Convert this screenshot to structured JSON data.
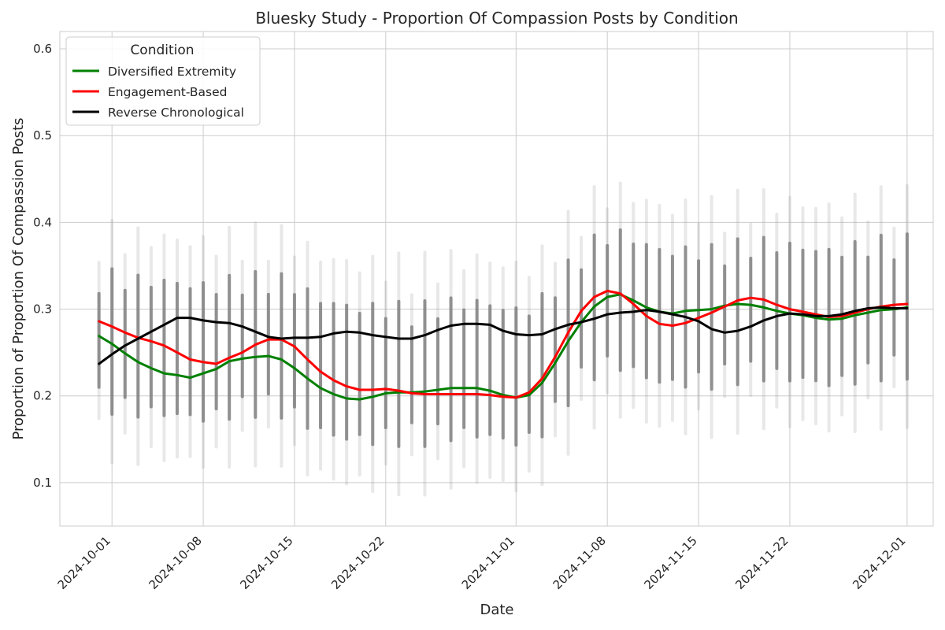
{
  "chart_data": {
    "type": "line",
    "title": "Bluesky Study - Proportion Of Compassion Posts by Condition",
    "xlabel": "Date",
    "ylabel": "Proportion of Proportion Of Compassion Posts",
    "xlim": [
      "2024-09-27",
      "2024-12-03"
    ],
    "ylim": [
      0.05,
      0.62
    ],
    "xticks": [
      "2024-10-01",
      "2024-10-08",
      "2024-10-15",
      "2024-10-22",
      "2024-11-01",
      "2024-11-08",
      "2024-11-15",
      "2024-11-22",
      "2024-12-01"
    ],
    "yticks": [
      0.1,
      0.2,
      0.3,
      0.4,
      0.5,
      0.6
    ],
    "grid": true,
    "legend": {
      "title": "Condition",
      "position": "top-left"
    },
    "scatter_color": "#808080",
    "series": [
      {
        "name": "Diversified Extremity",
        "color": "#008000",
        "points": [
          [
            "2024-09-30",
            0.269
          ],
          [
            "2024-10-01",
            0.26
          ],
          [
            "2024-10-02",
            0.249
          ],
          [
            "2024-10-03",
            0.239
          ],
          [
            "2024-10-04",
            0.232
          ],
          [
            "2024-10-05",
            0.226
          ],
          [
            "2024-10-06",
            0.224
          ],
          [
            "2024-10-07",
            0.221
          ],
          [
            "2024-10-08",
            0.226
          ],
          [
            "2024-10-09",
            0.231
          ],
          [
            "2024-10-10",
            0.24
          ],
          [
            "2024-10-11",
            0.243
          ],
          [
            "2024-10-12",
            0.245
          ],
          [
            "2024-10-13",
            0.246
          ],
          [
            "2024-10-14",
            0.242
          ],
          [
            "2024-10-15",
            0.232
          ],
          [
            "2024-10-16",
            0.22
          ],
          [
            "2024-10-17",
            0.209
          ],
          [
            "2024-10-18",
            0.202
          ],
          [
            "2024-10-19",
            0.197
          ],
          [
            "2024-10-20",
            0.196
          ],
          [
            "2024-10-21",
            0.199
          ],
          [
            "2024-10-22",
            0.203
          ],
          [
            "2024-10-23",
            0.204
          ],
          [
            "2024-10-24",
            0.204
          ],
          [
            "2024-10-25",
            0.205
          ],
          [
            "2024-10-26",
            0.207
          ],
          [
            "2024-10-27",
            0.209
          ],
          [
            "2024-10-28",
            0.209
          ],
          [
            "2024-10-29",
            0.209
          ],
          [
            "2024-10-30",
            0.206
          ],
          [
            "2024-10-31",
            0.201
          ],
          [
            "2024-11-01",
            0.198
          ],
          [
            "2024-11-02",
            0.201
          ],
          [
            "2024-11-03",
            0.215
          ],
          [
            "2024-11-04",
            0.238
          ],
          [
            "2024-11-05",
            0.263
          ],
          [
            "2024-11-06",
            0.285
          ],
          [
            "2024-11-07",
            0.303
          ],
          [
            "2024-11-08",
            0.314
          ],
          [
            "2024-11-09",
            0.317
          ],
          [
            "2024-11-10",
            0.31
          ],
          [
            "2024-11-11",
            0.302
          ],
          [
            "2024-11-12",
            0.297
          ],
          [
            "2024-11-13",
            0.295
          ],
          [
            "2024-11-14",
            0.298
          ],
          [
            "2024-11-15",
            0.299
          ],
          [
            "2024-11-16",
            0.3
          ],
          [
            "2024-11-17",
            0.304
          ],
          [
            "2024-11-18",
            0.306
          ],
          [
            "2024-11-19",
            0.305
          ],
          [
            "2024-11-20",
            0.302
          ],
          [
            "2024-11-21",
            0.298
          ],
          [
            "2024-11-22",
            0.295
          ],
          [
            "2024-11-23",
            0.293
          ],
          [
            "2024-11-24",
            0.29
          ],
          [
            "2024-11-25",
            0.288
          ],
          [
            "2024-11-26",
            0.289
          ],
          [
            "2024-11-27",
            0.293
          ],
          [
            "2024-11-28",
            0.296
          ],
          [
            "2024-11-29",
            0.299
          ],
          [
            "2024-11-30",
            0.3
          ],
          [
            "2024-12-01",
            0.302
          ]
        ]
      },
      {
        "name": "Engagement-Based",
        "color": "#ff0000",
        "points": [
          [
            "2024-09-30",
            0.286
          ],
          [
            "2024-10-01",
            0.28
          ],
          [
            "2024-10-02",
            0.273
          ],
          [
            "2024-10-03",
            0.267
          ],
          [
            "2024-10-04",
            0.263
          ],
          [
            "2024-10-05",
            0.258
          ],
          [
            "2024-10-06",
            0.25
          ],
          [
            "2024-10-07",
            0.242
          ],
          [
            "2024-10-08",
            0.239
          ],
          [
            "2024-10-09",
            0.237
          ],
          [
            "2024-10-10",
            0.244
          ],
          [
            "2024-10-11",
            0.25
          ],
          [
            "2024-10-12",
            0.259
          ],
          [
            "2024-10-13",
            0.265
          ],
          [
            "2024-10-14",
            0.265
          ],
          [
            "2024-10-15",
            0.257
          ],
          [
            "2024-10-16",
            0.242
          ],
          [
            "2024-10-17",
            0.228
          ],
          [
            "2024-10-18",
            0.218
          ],
          [
            "2024-10-19",
            0.211
          ],
          [
            "2024-10-20",
            0.207
          ],
          [
            "2024-10-21",
            0.207
          ],
          [
            "2024-10-22",
            0.208
          ],
          [
            "2024-10-23",
            0.206
          ],
          [
            "2024-10-24",
            0.203
          ],
          [
            "2024-10-25",
            0.202
          ],
          [
            "2024-10-26",
            0.202
          ],
          [
            "2024-10-27",
            0.202
          ],
          [
            "2024-10-28",
            0.202
          ],
          [
            "2024-10-29",
            0.202
          ],
          [
            "2024-10-30",
            0.201
          ],
          [
            "2024-10-31",
            0.199
          ],
          [
            "2024-11-01",
            0.198
          ],
          [
            "2024-11-02",
            0.204
          ],
          [
            "2024-11-03",
            0.22
          ],
          [
            "2024-11-04",
            0.245
          ],
          [
            "2024-11-05",
            0.273
          ],
          [
            "2024-11-06",
            0.298
          ],
          [
            "2024-11-07",
            0.314
          ],
          [
            "2024-11-08",
            0.321
          ],
          [
            "2024-11-09",
            0.318
          ],
          [
            "2024-11-10",
            0.306
          ],
          [
            "2024-11-11",
            0.292
          ],
          [
            "2024-11-12",
            0.283
          ],
          [
            "2024-11-13",
            0.281
          ],
          [
            "2024-11-14",
            0.284
          ],
          [
            "2024-11-15",
            0.29
          ],
          [
            "2024-11-16",
            0.296
          ],
          [
            "2024-11-17",
            0.303
          ],
          [
            "2024-11-18",
            0.31
          ],
          [
            "2024-11-19",
            0.313
          ],
          [
            "2024-11-20",
            0.311
          ],
          [
            "2024-11-21",
            0.305
          ],
          [
            "2024-11-22",
            0.3
          ],
          [
            "2024-11-23",
            0.297
          ],
          [
            "2024-11-24",
            0.294
          ],
          [
            "2024-11-25",
            0.291
          ],
          [
            "2024-11-26",
            0.292
          ],
          [
            "2024-11-27",
            0.296
          ],
          [
            "2024-11-28",
            0.3
          ],
          [
            "2024-11-29",
            0.303
          ],
          [
            "2024-11-30",
            0.305
          ],
          [
            "2024-12-01",
            0.306
          ]
        ]
      },
      {
        "name": "Reverse Chronological",
        "color": "#000000",
        "points": [
          [
            "2024-09-30",
            0.237
          ],
          [
            "2024-10-01",
            0.248
          ],
          [
            "2024-10-02",
            0.258
          ],
          [
            "2024-10-03",
            0.266
          ],
          [
            "2024-10-04",
            0.274
          ],
          [
            "2024-10-05",
            0.282
          ],
          [
            "2024-10-06",
            0.29
          ],
          [
            "2024-10-07",
            0.29
          ],
          [
            "2024-10-08",
            0.287
          ],
          [
            "2024-10-09",
            0.285
          ],
          [
            "2024-10-10",
            0.284
          ],
          [
            "2024-10-11",
            0.28
          ],
          [
            "2024-10-12",
            0.274
          ],
          [
            "2024-10-13",
            0.268
          ],
          [
            "2024-10-14",
            0.266
          ],
          [
            "2024-10-15",
            0.267
          ],
          [
            "2024-10-16",
            0.267
          ],
          [
            "2024-10-17",
            0.268
          ],
          [
            "2024-10-18",
            0.272
          ],
          [
            "2024-10-19",
            0.274
          ],
          [
            "2024-10-20",
            0.273
          ],
          [
            "2024-10-21",
            0.27
          ],
          [
            "2024-10-22",
            0.268
          ],
          [
            "2024-10-23",
            0.266
          ],
          [
            "2024-10-24",
            0.266
          ],
          [
            "2024-10-25",
            0.27
          ],
          [
            "2024-10-26",
            0.276
          ],
          [
            "2024-10-27",
            0.281
          ],
          [
            "2024-10-28",
            0.283
          ],
          [
            "2024-10-29",
            0.283
          ],
          [
            "2024-10-30",
            0.282
          ],
          [
            "2024-10-31",
            0.275
          ],
          [
            "2024-11-01",
            0.271
          ],
          [
            "2024-11-02",
            0.27
          ],
          [
            "2024-11-03",
            0.271
          ],
          [
            "2024-11-04",
            0.277
          ],
          [
            "2024-11-05",
            0.282
          ],
          [
            "2024-11-06",
            0.285
          ],
          [
            "2024-11-07",
            0.289
          ],
          [
            "2024-11-08",
            0.294
          ],
          [
            "2024-11-09",
            0.296
          ],
          [
            "2024-11-10",
            0.297
          ],
          [
            "2024-11-11",
            0.299
          ],
          [
            "2024-11-12",
            0.297
          ],
          [
            "2024-11-13",
            0.294
          ],
          [
            "2024-11-14",
            0.291
          ],
          [
            "2024-11-15",
            0.286
          ],
          [
            "2024-11-16",
            0.277
          ],
          [
            "2024-11-17",
            0.273
          ],
          [
            "2024-11-18",
            0.275
          ],
          [
            "2024-11-19",
            0.28
          ],
          [
            "2024-11-20",
            0.287
          ],
          [
            "2024-11-21",
            0.292
          ],
          [
            "2024-11-22",
            0.295
          ],
          [
            "2024-11-23",
            0.294
          ],
          [
            "2024-11-24",
            0.292
          ],
          [
            "2024-11-25",
            0.292
          ],
          [
            "2024-11-26",
            0.294
          ],
          [
            "2024-11-27",
            0.298
          ],
          [
            "2024-11-28",
            0.301
          ],
          [
            "2024-11-29",
            0.302
          ],
          [
            "2024-11-30",
            0.301
          ],
          [
            "2024-12-01",
            0.301
          ]
        ]
      }
    ]
  }
}
